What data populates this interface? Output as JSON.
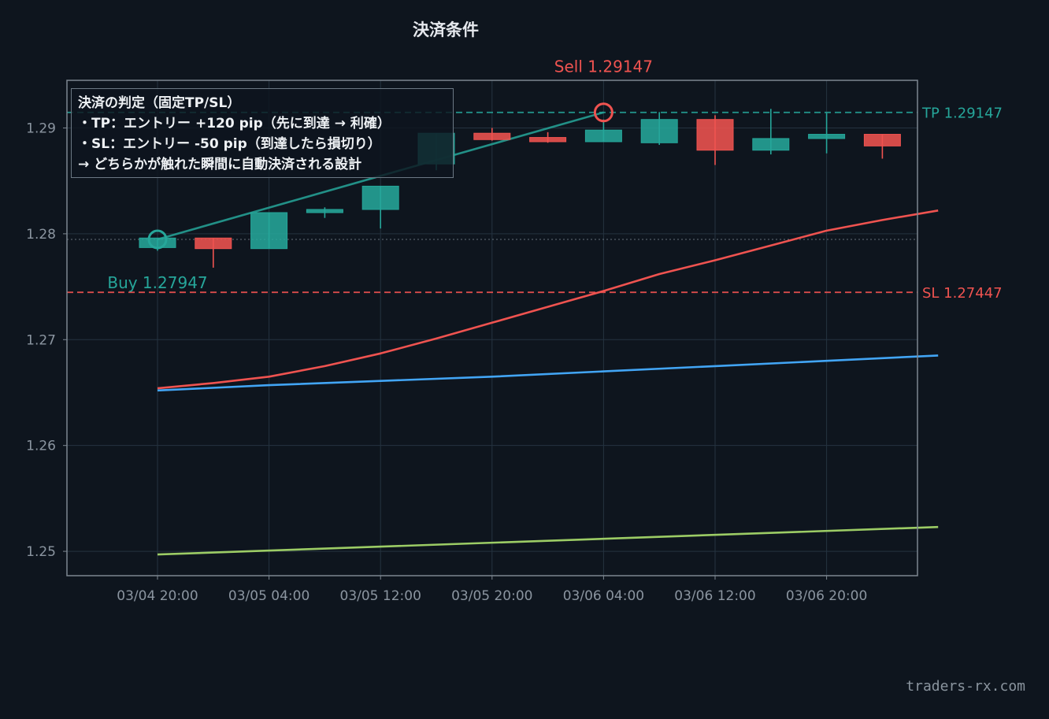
{
  "title": "決済条件",
  "watermark": "traders-rx.com",
  "note": {
    "lines": [
      "決済の判定（固定TP/SL）",
      "・TP：エントリー +120 pip（先に到達 → 利確）",
      "・SL：エントリー -50 pip（到達したら損切り）",
      "→ どちらかが触れた瞬間に自動決済される設計"
    ]
  },
  "colors": {
    "background": "#0e151e",
    "up": "#26a69a",
    "down": "#ef5350",
    "ma_short": "#ef5350",
    "ma_mid": "#42a5f5",
    "ma_long": "#9ccc65",
    "grid": "#253340",
    "axis": "#7d8791",
    "tick_text": "#8b95a0"
  },
  "chart_data": {
    "type": "candlestick",
    "x_ticks": [
      "03/04 20:00",
      "03/05 04:00",
      "03/05 12:00",
      "03/05 20:00",
      "03/06 04:00",
      "03/06 12:00",
      "03/06 20:00"
    ],
    "y_ticks": [
      "1.25",
      "1.26",
      "1.27",
      "1.28",
      "1.29"
    ],
    "ylim": [
      1.2477,
      1.2945
    ],
    "grid": true,
    "candles": [
      {
        "o": 1.2787,
        "h": 1.2796,
        "l": 1.2784,
        "c": 1.2796
      },
      {
        "o": 1.2796,
        "h": 1.2796,
        "l": 1.2768,
        "c": 1.2786
      },
      {
        "o": 1.2786,
        "h": 1.282,
        "l": 1.2786,
        "c": 1.282
      },
      {
        "o": 1.282,
        "h": 1.2825,
        "l": 1.2815,
        "c": 1.2823
      },
      {
        "o": 1.2823,
        "h": 1.2845,
        "l": 1.2805,
        "c": 1.2845
      },
      {
        "o": 1.2866,
        "h": 1.2895,
        "l": 1.286,
        "c": 1.2895
      },
      {
        "o": 1.2895,
        "h": 1.29,
        "l": 1.2888,
        "c": 1.2889
      },
      {
        "o": 1.2891,
        "h": 1.2896,
        "l": 1.2886,
        "c": 1.2887
      },
      {
        "o": 1.2887,
        "h": 1.2908,
        "l": 1.2887,
        "c": 1.2898
      },
      {
        "o": 1.2886,
        "h": 1.2915,
        "l": 1.2884,
        "c": 1.2908
      },
      {
        "o": 1.2908,
        "h": 1.2912,
        "l": 1.2865,
        "c": 1.2879
      },
      {
        "o": 1.2879,
        "h": 1.2918,
        "l": 1.2875,
        "c": 1.289
      },
      {
        "o": 1.289,
        "h": 1.2914,
        "l": 1.2876,
        "c": 1.2894
      },
      {
        "o": 1.2894,
        "h": 1.2894,
        "l": 1.2871,
        "c": 1.2883
      }
    ],
    "moving_averages": [
      {
        "color_key": "ma_short",
        "x": [
          0,
          1,
          2,
          3,
          4,
          5,
          6,
          7,
          8,
          9,
          10,
          11,
          12,
          13,
          14
        ],
        "values": [
          1.2654,
          1.2659,
          1.2665,
          1.2675,
          1.2687,
          1.2701,
          1.2716,
          1.2731,
          1.2746,
          1.2762,
          1.2775,
          1.2789,
          1.2803,
          1.2813,
          1.2822
        ]
      },
      {
        "color_key": "ma_mid",
        "x": [
          0,
          2,
          4,
          6,
          8,
          10,
          12,
          14
        ],
        "values": [
          1.2652,
          1.2657,
          1.2661,
          1.2665,
          1.267,
          1.2675,
          1.268,
          1.2685
        ]
      },
      {
        "color_key": "ma_long",
        "x": [
          0,
          14
        ],
        "values": [
          1.2497,
          1.2523
        ]
      }
    ],
    "levels": [
      {
        "label": "TP 1.29147",
        "value": 1.29147,
        "color_key": "up",
        "style": "dashed"
      },
      {
        "label": "SL 1.27447",
        "value": 1.27447,
        "color_key": "down",
        "style": "dashed"
      },
      {
        "label": "",
        "value": 1.27947,
        "color_key": "axis",
        "style": "dotted"
      }
    ],
    "entry": {
      "label": "Buy 1.27947",
      "index": 0,
      "price": 1.27947
    },
    "exit": {
      "label": "Sell 1.29147",
      "index": 8,
      "price": 1.29147
    }
  }
}
